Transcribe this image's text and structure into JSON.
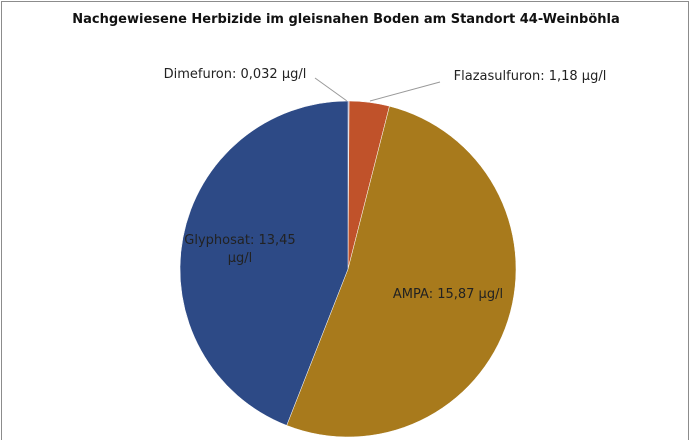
{
  "chart_data": {
    "type": "pie",
    "title": "Nachgewiesene Herbizide im gleisnahen Boden am Standort 44-Weinböhla",
    "values": [
      0.032,
      1.18,
      15.87,
      13.45
    ],
    "value_labels": [
      "Dimefuron: 0,032 µg/l",
      "Flazasulfuron: 1,18 µg/l",
      "AMPA: 15,87 µg/l",
      "Glyphosat: 13,45 µg/l"
    ],
    "colors": [
      "#6b5a8a",
      "#c0522a",
      "#a87a1c",
      "#2d4a86"
    ]
  }
}
